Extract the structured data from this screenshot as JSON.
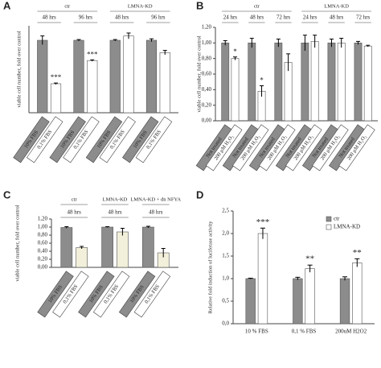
{
  "chart_data": [
    {
      "type": "bar",
      "panel": "A",
      "ylabel": "viable cell number, fold over control",
      "ylim": [
        0,
        1.2
      ],
      "colors": [
        "#8c8c8c",
        "#ffffff"
      ],
      "groups": [
        {
          "label": "ctr",
          "subgroups": [
            {
              "label": "48 hrs",
              "categories": [
                "10% FBS",
                "0,1% FBS"
              ],
              "values": [
                1.0,
                0.4
              ],
              "errors": [
                0.06,
                0.01
              ],
              "annotations": [
                null,
                "***"
              ]
            },
            {
              "label": "96 hrs",
              "categories": [
                "10% FBS",
                "0,1% FBS"
              ],
              "values": [
                1.0,
                0.72
              ],
              "errors": [
                0.01,
                0.01
              ],
              "annotations": [
                null,
                "***"
              ]
            }
          ]
        },
        {
          "label": "LMNA-KD",
          "subgroups": [
            {
              "label": "48 hrs",
              "categories": [
                "10% FBS",
                "0,1% FBS"
              ],
              "values": [
                1.0,
                1.06
              ],
              "errors": [
                0.01,
                0.04
              ],
              "annotations": [
                null,
                null
              ]
            },
            {
              "label": "96 hrs",
              "categories": [
                "10% FBS",
                "0,1% FBS"
              ],
              "values": [
                1.0,
                0.83
              ],
              "errors": [
                0.02,
                0.03
              ],
              "annotations": [
                null,
                null
              ]
            }
          ]
        }
      ]
    },
    {
      "type": "bar",
      "panel": "B",
      "ylabel": "viable cell number, fold over control",
      "ylim": [
        0,
        1.2
      ],
      "colors": [
        "#8c8c8c",
        "#ffffff"
      ],
      "yticks": [
        {
          "value": 0,
          "label": "0,00"
        },
        {
          "value": 0.2,
          "label": "0,20"
        },
        {
          "value": 0.4,
          "label": "0,40"
        },
        {
          "value": 0.6,
          "label": "0,60"
        },
        {
          "value": 0.8,
          "label": "0,80"
        },
        {
          "value": 1.0,
          "label": "1,00"
        },
        {
          "value": 1.2,
          "label": "1,20"
        }
      ],
      "groups": [
        {
          "label": "ctr",
          "subgroups": [
            {
              "label": "24 hrs",
              "categories": [
                "Not treated",
                "200 µM H₂O₂"
              ],
              "values": [
                1.0,
                0.8
              ],
              "errors": [
                0.03,
                0.02
              ],
              "annotations": [
                null,
                "*"
              ]
            },
            {
              "label": "48 hrs",
              "categories": [
                "Not treated",
                "200 µM H₂O₂"
              ],
              "values": [
                1.0,
                0.38
              ],
              "errors": [
                0.06,
                0.07
              ],
              "annotations": [
                null,
                "*"
              ]
            },
            {
              "label": "72 hrs",
              "categories": [
                "Not treated",
                "200 µM H₂O₂"
              ],
              "values": [
                1.0,
                0.75
              ],
              "errors": [
                0.05,
                0.11
              ],
              "annotations": [
                null,
                null
              ]
            }
          ]
        },
        {
          "label": "LMNA-KD",
          "subgroups": [
            {
              "label": "24 hrs",
              "categories": [
                "Not treated",
                "200 µM H₂O₂"
              ],
              "values": [
                1.0,
                1.02
              ],
              "errors": [
                0.1,
                0.08
              ],
              "annotations": [
                null,
                null
              ]
            },
            {
              "label": "48 hrs",
              "categories": [
                "Not treated",
                "200 µM H₂O₂"
              ],
              "values": [
                1.0,
                1.0
              ],
              "errors": [
                0.05,
                0.06
              ],
              "annotations": [
                null,
                null
              ]
            },
            {
              "label": "72 hrs",
              "categories": [
                "Not treated",
                "200 µM H₂O₂"
              ],
              "values": [
                1.0,
                0.96
              ],
              "errors": [
                0.02,
                0.01
              ],
              "annotations": [
                null,
                null
              ]
            }
          ]
        }
      ]
    },
    {
      "type": "bar",
      "panel": "C",
      "ylabel": "viable cell number, fold over control",
      "ylim": [
        0,
        1.2
      ],
      "colors": [
        "#8c8c8c",
        "#f2f0da"
      ],
      "yticks": [
        {
          "value": 0,
          "label": "0,00"
        },
        {
          "value": 0.2,
          "label": "0,20"
        },
        {
          "value": 0.4,
          "label": "0,40"
        },
        {
          "value": 0.6,
          "label": "0,60"
        },
        {
          "value": 0.8,
          "label": "0,80"
        },
        {
          "value": 1.0,
          "label": "1,00"
        },
        {
          "value": 1.2,
          "label": "1,20"
        }
      ],
      "groups": [
        {
          "label": "ctr",
          "subgroups": [
            {
              "label": "48 hrs",
              "categories": [
                "10% FBS",
                "0,1% FBS"
              ],
              "values": [
                0.99,
                0.49
              ],
              "errors": [
                0.02,
                0.03
              ],
              "annotations": [
                null,
                null
              ]
            }
          ]
        },
        {
          "label": "LMNA-KD",
          "subgroups": [
            {
              "label": "48 hrs",
              "categories": [
                "10% FBS",
                "0,1% FBS"
              ],
              "values": [
                1.0,
                0.88
              ],
              "errors": [
                0.01,
                0.09
              ],
              "annotations": [
                null,
                null
              ]
            }
          ]
        },
        {
          "label": "LMNA-KD + dn NFYA",
          "subgroups": [
            {
              "label": "48 hrs",
              "categories": [
                "10% FBS",
                "0,1% FBS"
              ],
              "values": [
                1.0,
                0.36
              ],
              "errors": [
                0.02,
                0.11
              ],
              "annotations": [
                null,
                null
              ]
            }
          ]
        }
      ]
    },
    {
      "type": "grouped_bar",
      "panel": "D",
      "ylabel": "Relative fold induction of luciferase activity",
      "ylim": [
        0,
        2.5
      ],
      "yticks": [
        {
          "value": 0,
          "label": "0,0"
        },
        {
          "value": 0.5,
          "label": "0,5"
        },
        {
          "value": 1.0,
          "label": "1,0"
        },
        {
          "value": 1.5,
          "label": "1,5"
        },
        {
          "value": 2.0,
          "label": "2,0"
        },
        {
          "value": 2.5,
          "label": "2,5"
        }
      ],
      "categories": [
        "10 % FBS",
        "0,1 % FBS",
        "200uM H2O2"
      ],
      "series": [
        {
          "name": "ctr",
          "color": "#8c8c8c",
          "values": [
            1.0,
            1.0,
            1.0
          ],
          "errors": [
            0.01,
            0.03,
            0.04
          ],
          "annotations": [
            null,
            null,
            null
          ]
        },
        {
          "name": "LMNA-KD",
          "color": "#ffffff",
          "values": [
            2.0,
            1.22,
            1.35
          ],
          "errors": [
            0.12,
            0.08,
            0.09
          ],
          "annotations": [
            "***",
            "**",
            "**"
          ]
        }
      ]
    }
  ]
}
